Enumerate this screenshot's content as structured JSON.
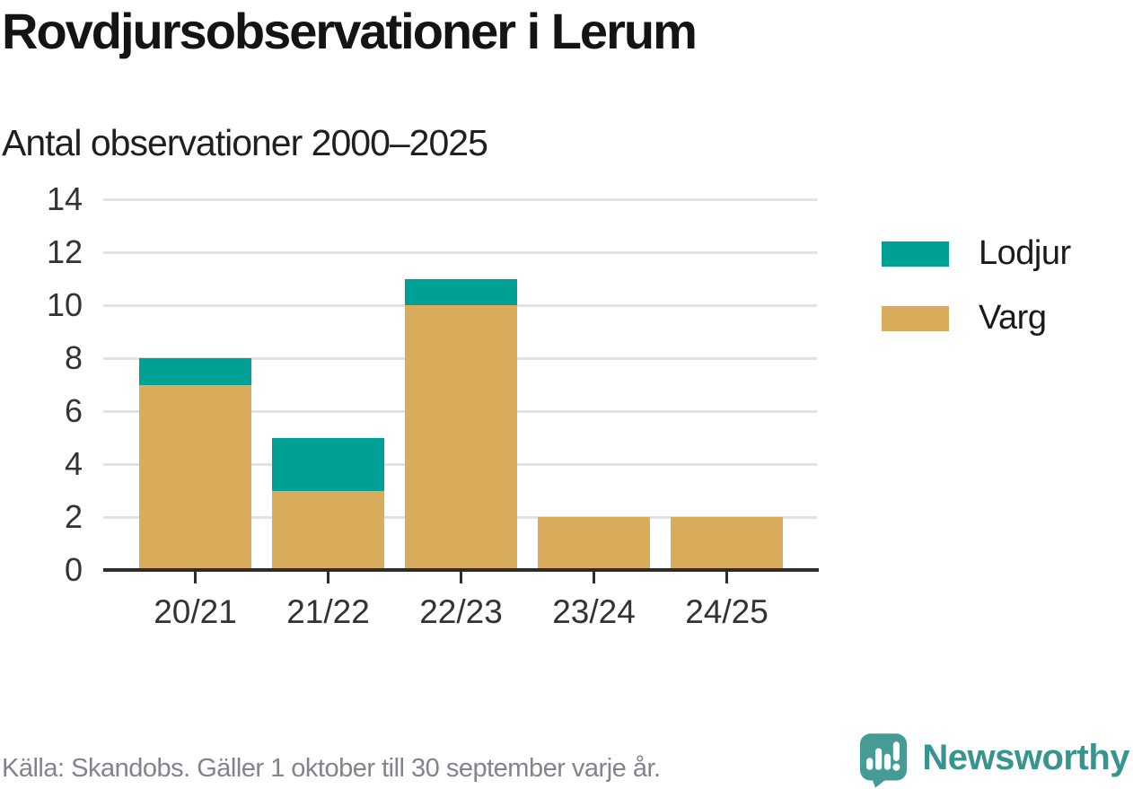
{
  "title": "Rovdjursobservationer i Lerum",
  "subtitle": "Antal observationer 2000–2025",
  "legend": {
    "items": [
      {
        "label": "Lodjur",
        "color": "#00a096"
      },
      {
        "label": "Varg",
        "color": "#d9ac5c"
      }
    ]
  },
  "footer": {
    "source": "Källa: Skandobs. Gäller 1 oktober till 30 september varje år.",
    "brand": "Newsworthy"
  },
  "colors": {
    "lodjur": "#00a096",
    "varg": "#d9ac5c",
    "gridline": "#e2e2e2",
    "axis": "#2d2d2d",
    "brand_teal": "#38948e",
    "brand_icon_teal": "#459c95"
  },
  "chart_data": {
    "type": "bar",
    "stacked": true,
    "title": "Rovdjursobservationer i Lerum",
    "subtitle": "Antal observationer 2000–2025",
    "categories": [
      "20/21",
      "21/22",
      "22/23",
      "23/24",
      "24/25"
    ],
    "series": [
      {
        "name": "Varg",
        "color": "#d9ac5c",
        "values": [
          7,
          3,
          10,
          2,
          2
        ]
      },
      {
        "name": "Lodjur",
        "color": "#00a096",
        "values": [
          1,
          2,
          1,
          0,
          0
        ]
      }
    ],
    "totals": [
      8,
      5,
      11,
      2,
      2
    ],
    "xlabel": "",
    "ylabel": "",
    "ylim": [
      0,
      14
    ],
    "yticks": [
      0,
      2,
      4,
      6,
      8,
      10,
      12,
      14
    ],
    "grid": true,
    "legend_position": "right"
  }
}
